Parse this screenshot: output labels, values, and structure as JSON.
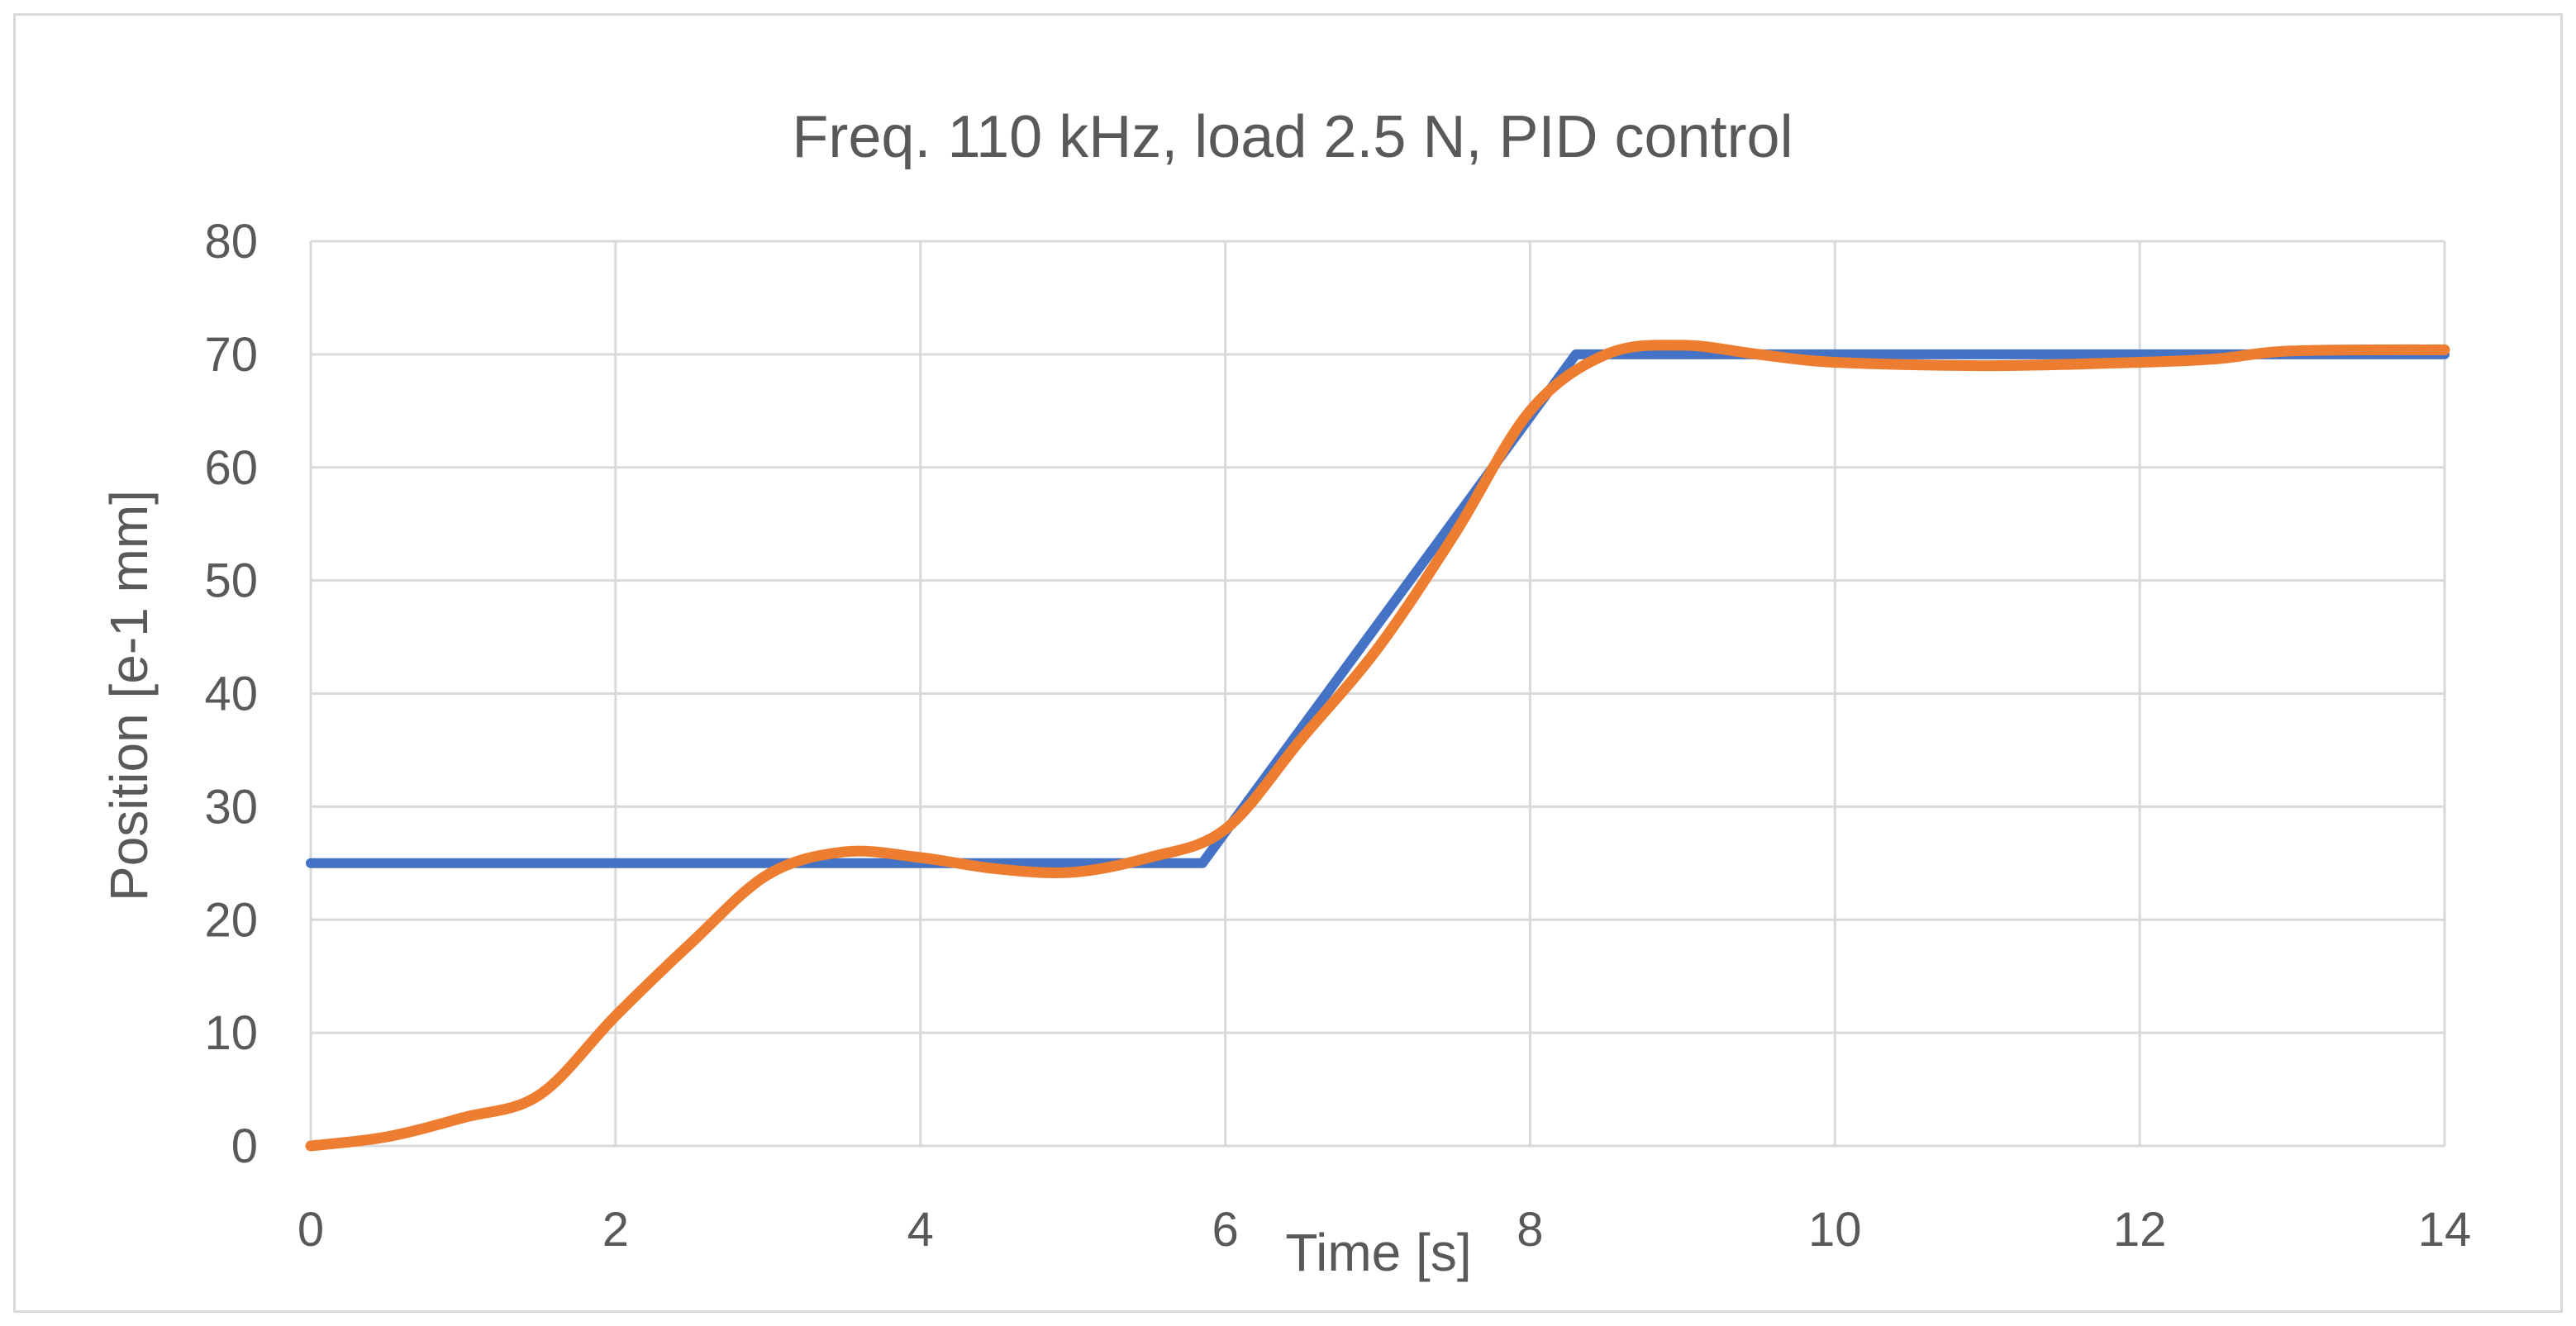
{
  "chart_data": {
    "type": "line",
    "title": "Freq. 110 kHz, load 2.5 N, PID control",
    "xlabel": "Time [s]",
    "ylabel": "Position [e-1 mm]",
    "xlim": [
      0,
      14
    ],
    "ylim": [
      0,
      80
    ],
    "xticks": [
      0,
      2,
      4,
      6,
      8,
      10,
      12,
      14
    ],
    "yticks": [
      0,
      10,
      20,
      30,
      40,
      50,
      60,
      70,
      80
    ],
    "grid": true,
    "legend": "none",
    "series": [
      {
        "color": "#4472c4",
        "style": "step-ramp",
        "x": [
          0,
          5.85,
          8.3,
          14
        ],
        "y": [
          25,
          25,
          70,
          70
        ]
      },
      {
        "color": "#ed7d31",
        "style": "smooth",
        "x": [
          0,
          0.5,
          1.0,
          1.5,
          2.0,
          2.5,
          3.0,
          3.5,
          4.0,
          4.5,
          5.0,
          5.5,
          6.0,
          6.5,
          7.0,
          7.5,
          8.0,
          8.5,
          9.0,
          9.5,
          10.0,
          11.0,
          12.0,
          12.5,
          13.0,
          14.0
        ],
        "y": [
          0,
          0.8,
          2.5,
          4.5,
          11.5,
          18,
          24,
          26,
          25.5,
          24.5,
          24.2,
          25.5,
          28,
          36,
          44,
          54,
          65,
          70,
          70.8,
          70,
          69.3,
          69,
          69.3,
          69.6,
          70.3,
          70.4
        ]
      }
    ]
  }
}
